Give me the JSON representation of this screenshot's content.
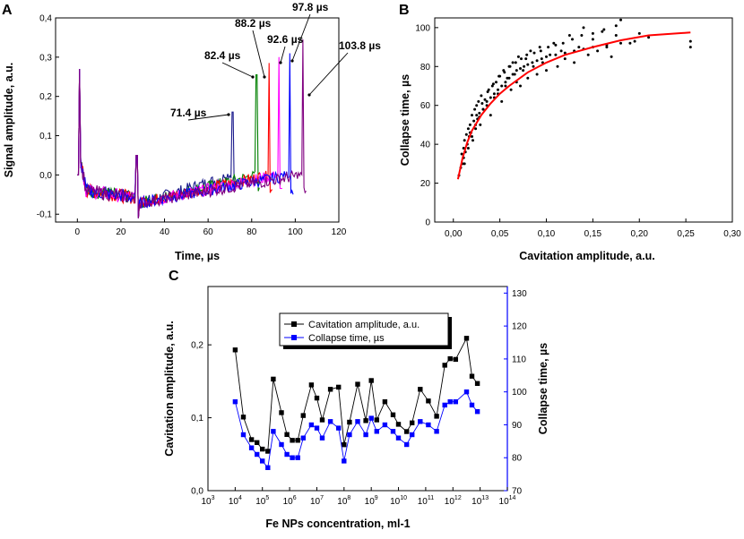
{
  "panels": {
    "A": {
      "letter": "A"
    },
    "B": {
      "letter": "B"
    },
    "C": {
      "letter": "C"
    }
  },
  "chart_data": [
    {
      "id": "A",
      "type": "line",
      "title": "",
      "xlabel": "Time, µs",
      "ylabel": "Signal amplitude, a.u.",
      "xlim": [
        -10,
        120
      ],
      "ylim": [
        -0.12,
        0.4
      ],
      "xticks": [
        0,
        20,
        40,
        60,
        80,
        100,
        120
      ],
      "xtick_labels": [
        "0",
        "20",
        "40",
        "60",
        "80",
        "100",
        "120"
      ],
      "yticks": [
        -0.1,
        0.0,
        0.1,
        0.2,
        0.3,
        0.4
      ],
      "ytick_labels": [
        "-0,1",
        "0,0",
        "0,1",
        "0,2",
        "0,3",
        "0,4"
      ],
      "series": [
        {
          "name": "71.4 µs",
          "collapse_time": 71.4,
          "peak": 0.16,
          "color": "#1a1a8c",
          "annotation": "71.4 µs"
        },
        {
          "name": "82.4 µs",
          "collapse_time": 82.4,
          "peak": 0.255,
          "color": "#008000",
          "annotation": "82.4 µs"
        },
        {
          "name": "88.2 µs",
          "collapse_time": 88.2,
          "peak": 0.285,
          "color": "#ff0000",
          "annotation": "88.2 µs"
        },
        {
          "name": "92.6 µs",
          "collapse_time": 92.6,
          "peak": 0.3,
          "color": "#ff00ff",
          "annotation": "92.6 µs"
        },
        {
          "name": "97.8 µs",
          "collapse_time": 97.8,
          "peak": 0.31,
          "color": "#0000ff",
          "annotation": "97.8 µs"
        },
        {
          "name": "103.8 µs",
          "collapse_time": 103.8,
          "peak": 0.345,
          "color": "#800080",
          "annotation": "103.8 µs"
        }
      ]
    },
    {
      "id": "B",
      "type": "scatter",
      "title": "",
      "xlabel": "Cavitation amplitude, a.u.",
      "ylabel": "Collapse time, µs",
      "xlim": [
        -0.02,
        0.3
      ],
      "ylim": [
        0,
        105
      ],
      "xticks": [
        0.0,
        0.05,
        0.1,
        0.15,
        0.2,
        0.25,
        0.3
      ],
      "xtick_labels": [
        "0,00",
        "0,05",
        "0,10",
        "0,15",
        "0,20",
        "0,25",
        "0,30"
      ],
      "yticks": [
        0,
        20,
        40,
        60,
        80,
        100
      ],
      "ytick_labels": [
        "0",
        "20",
        "40",
        "60",
        "80",
        "100"
      ],
      "fit": {
        "name": "fit",
        "color": "#ff0000",
        "x": [
          0.005,
          0.01,
          0.015,
          0.02,
          0.03,
          0.04,
          0.05,
          0.06,
          0.08,
          0.1,
          0.12,
          0.15,
          0.18,
          0.21,
          0.255
        ],
        "y": [
          22,
          33,
          41,
          47,
          55,
          61,
          66,
          70,
          77,
          82,
          86,
          90,
          93.5,
          96,
          97.5
        ]
      },
      "points": {
        "name": "data",
        "color": "#000000",
        "x": [
          0.006,
          0.008,
          0.009,
          0.01,
          0.011,
          0.012,
          0.013,
          0.014,
          0.015,
          0.016,
          0.017,
          0.018,
          0.019,
          0.02,
          0.021,
          0.022,
          0.023,
          0.024,
          0.025,
          0.026,
          0.027,
          0.028,
          0.029,
          0.03,
          0.032,
          0.034,
          0.036,
          0.038,
          0.04,
          0.042,
          0.044,
          0.046,
          0.048,
          0.05,
          0.052,
          0.054,
          0.056,
          0.058,
          0.06,
          0.062,
          0.064,
          0.066,
          0.068,
          0.07,
          0.072,
          0.075,
          0.078,
          0.08,
          0.083,
          0.086,
          0.09,
          0.093,
          0.096,
          0.1,
          0.104,
          0.108,
          0.112,
          0.116,
          0.12,
          0.125,
          0.13,
          0.135,
          0.14,
          0.145,
          0.15,
          0.155,
          0.16,
          0.165,
          0.17,
          0.175,
          0.18,
          0.19,
          0.2,
          0.21,
          0.255,
          0.255,
          0.012,
          0.016,
          0.02,
          0.024,
          0.028,
          0.032,
          0.036,
          0.04,
          0.044,
          0.048,
          0.052,
          0.056,
          0.06,
          0.064,
          0.068,
          0.072,
          0.076,
          0.08,
          0.085,
          0.09,
          0.095,
          0.1,
          0.11,
          0.12,
          0.13,
          0.14,
          0.15,
          0.165,
          0.18,
          0.195,
          0.011,
          0.018,
          0.025,
          0.031,
          0.037,
          0.043,
          0.049,
          0.055,
          0.061,
          0.067,
          0.073,
          0.079,
          0.087,
          0.094,
          0.102,
          0.11,
          0.118,
          0.128,
          0.138,
          0.15,
          0.162,
          0.175
        ],
        "y": [
          24,
          28,
          35,
          30,
          38,
          42,
          36,
          45,
          40,
          48,
          44,
          50,
          46,
          55,
          42,
          52,
          58,
          48,
          60,
          53,
          62,
          56,
          50,
          65,
          58,
          63,
          60,
          68,
          55,
          70,
          64,
          72,
          66,
          75,
          62,
          78,
          70,
          74,
          80,
          68,
          82,
          76,
          72,
          85,
          70,
          78,
          84,
          74,
          88,
          80,
          76,
          90,
          82,
          78,
          86,
          92,
          80,
          88,
          84,
          96,
          82,
          90,
          100,
          86,
          94,
          88,
          98,
          90,
          85,
          96,
          104,
          92,
          97,
          95,
          93,
          90,
          30,
          38,
          44,
          50,
          54,
          58,
          62,
          64,
          66,
          68,
          70,
          72,
          74,
          76,
          78,
          79,
          80,
          81,
          82,
          83,
          84,
          85,
          86,
          87,
          88,
          89,
          90,
          91,
          92,
          93,
          33,
          46,
          55,
          61,
          67,
          71,
          75,
          77,
          80,
          82,
          84,
          86,
          87,
          88,
          90,
          91,
          92,
          94,
          96,
          97,
          99,
          101
        ]
      }
    },
    {
      "id": "C",
      "type": "line",
      "title": "",
      "xlabel": "Fe NPs concentration, ml-1",
      "ylabel": "Cavitation amplitude, a.u.",
      "ylabel2": "Collapse time, µs",
      "xlim_log10": [
        3,
        14
      ],
      "ylim": [
        0.0,
        0.28
      ],
      "ylim2": [
        70,
        132
      ],
      "xtick_exponents": [
        "3",
        "4",
        "5",
        "6",
        "7",
        "8",
        "9",
        "10",
        "11",
        "12",
        "13",
        "14"
      ],
      "yticks": [
        0.0,
        0.1,
        0.2
      ],
      "ytick_labels": [
        "0,0",
        "0,1",
        "0,2"
      ],
      "yticks2": [
        70,
        80,
        90,
        100,
        110,
        120,
        130
      ],
      "ytick2_labels": [
        "70",
        "80",
        "90",
        "100",
        "110",
        "120",
        "130"
      ],
      "log10_x": [
        4.0,
        4.3,
        4.6,
        4.8,
        5.0,
        5.2,
        5.4,
        5.7,
        5.9,
        6.1,
        6.3,
        6.5,
        6.8,
        7.0,
        7.2,
        7.5,
        7.8,
        8.0,
        8.2,
        8.5,
        8.8,
        9.0,
        9.2,
        9.5,
        9.8,
        10.0,
        10.3,
        10.5,
        10.8,
        11.1,
        11.4,
        11.7,
        11.9,
        12.1,
        12.5,
        12.7,
        12.9
      ],
      "series": [
        {
          "name": "Cavitation amplitude, a.u.",
          "axis": "left",
          "color": "#000000",
          "values": [
            0.193,
            0.101,
            0.07,
            0.066,
            0.057,
            0.054,
            0.153,
            0.107,
            0.077,
            0.069,
            0.069,
            0.103,
            0.145,
            0.127,
            0.097,
            0.139,
            0.142,
            0.063,
            0.094,
            0.146,
            0.096,
            0.151,
            0.097,
            0.122,
            0.104,
            0.091,
            0.081,
            0.093,
            0.139,
            0.123,
            0.102,
            0.172,
            0.181,
            0.18,
            0.209,
            0.157,
            0.147
          ]
        },
        {
          "name": "Collapse time, µs",
          "axis": "right",
          "color": "#0000ff",
          "values": [
            97,
            87,
            83,
            81,
            79,
            77,
            88,
            84,
            81,
            80,
            80,
            86,
            90,
            89,
            86,
            91,
            89,
            79,
            87,
            91,
            87,
            92,
            88,
            90,
            88,
            86,
            84,
            87,
            91,
            90,
            88,
            96,
            97,
            97,
            100,
            96,
            94
          ]
        }
      ],
      "legend": [
        "Cavitation amplitude, a.u.",
        "Collapse time, µs"
      ]
    }
  ]
}
